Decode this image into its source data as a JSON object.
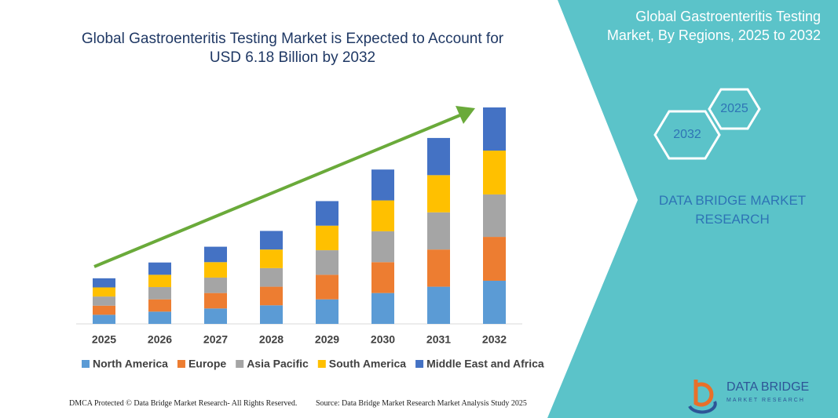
{
  "chart_data": {
    "type": "bar",
    "stacked": true,
    "title": "Global Gastroenteritis Testing Market is Expected to Account for USD 6.18 Billion by 2032",
    "categories": [
      "2025",
      "2026",
      "2027",
      "2028",
      "2029",
      "2030",
      "2031",
      "2032"
    ],
    "series": [
      {
        "name": "North America",
        "color": "#5b9bd5",
        "values": [
          0.26,
          0.35,
          0.44,
          0.53,
          0.7,
          0.88,
          1.06,
          1.23
        ]
      },
      {
        "name": "Europe",
        "color": "#ed7d31",
        "values": [
          0.26,
          0.35,
          0.44,
          0.53,
          0.7,
          0.88,
          1.06,
          1.25
        ]
      },
      {
        "name": "Asia Pacific",
        "color": "#a5a5a5",
        "values": [
          0.26,
          0.35,
          0.44,
          0.53,
          0.7,
          0.88,
          1.06,
          1.21
        ]
      },
      {
        "name": "South America",
        "color": "#ffc000",
        "values": [
          0.26,
          0.35,
          0.44,
          0.53,
          0.7,
          0.88,
          1.06,
          1.25
        ]
      },
      {
        "name": "Middle East and Africa",
        "color": "#4472c4",
        "values": [
          0.26,
          0.35,
          0.44,
          0.53,
          0.7,
          0.88,
          1.06,
          1.23
        ]
      }
    ],
    "legend": "bottom"
  },
  "panel": {
    "title": "Global Gastroenteritis Testing Market, By Regions, 2025 to 2032",
    "hex_labels": [
      "2025",
      "2032"
    ],
    "brand": "DATA BRIDGE MARKET RESEARCH"
  },
  "logo": {
    "name": "DATA BRIDGE",
    "tagline": "MARKET RESEARCH"
  },
  "footer": {
    "left": "DMCA Protected © Data Bridge Market Research- All Rights Reserved.",
    "right": "Source: Data Bridge Market Research Market Analysis Study 2025"
  }
}
